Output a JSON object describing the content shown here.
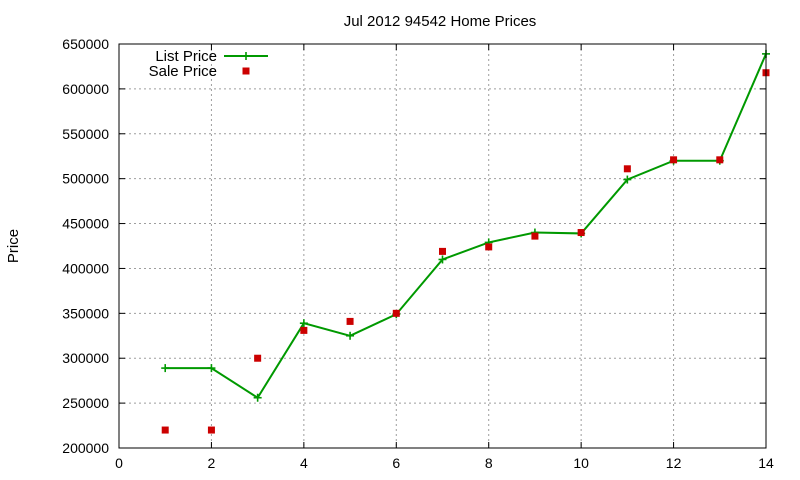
{
  "chart_data": {
    "type": "line",
    "title": "Jul 2012 94542 Home Prices",
    "xlabel": "",
    "ylabel": "Price",
    "xlim": [
      0,
      14
    ],
    "ylim": [
      200000,
      650000
    ],
    "xticks": [
      "0",
      "2",
      "4",
      "6",
      "8",
      "10",
      "12",
      "14"
    ],
    "yticks": [
      "200000",
      "250000",
      "300000",
      "350000",
      "400000",
      "450000",
      "500000",
      "550000",
      "600000",
      "650000"
    ],
    "grid": true,
    "legend_position": "top-left",
    "series": [
      {
        "name": "List Price",
        "style": "line-plus",
        "color": "#009900",
        "x": [
          1,
          2,
          3,
          4,
          5,
          6,
          7,
          8,
          9,
          10,
          11,
          12,
          13,
          14
        ],
        "y": [
          289000,
          289000,
          256000,
          339000,
          325000,
          349000,
          410000,
          429000,
          440000,
          439000,
          499000,
          520000,
          520000,
          639000
        ]
      },
      {
        "name": "Sale Price",
        "style": "square-points",
        "color": "#cc0000",
        "x": [
          1,
          2,
          3,
          4,
          5,
          6,
          7,
          8,
          9,
          10,
          11,
          12,
          13,
          14
        ],
        "y": [
          220000,
          220000,
          300000,
          331000,
          341000,
          350000,
          419000,
          424000,
          436000,
          440000,
          511000,
          521000,
          521000,
          618000
        ]
      }
    ]
  }
}
